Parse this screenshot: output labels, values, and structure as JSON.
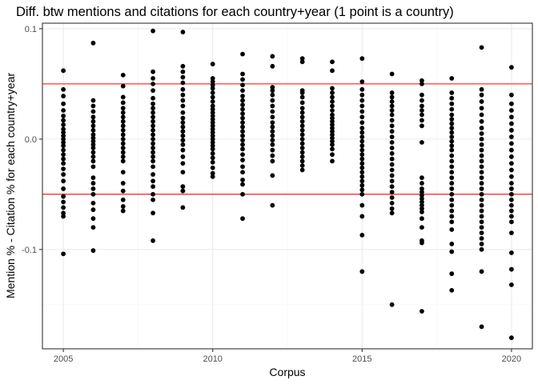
{
  "chart_data": {
    "type": "scatter",
    "title": "Diff. btw mentions and citations for each country+year (1 point is a country)",
    "xlabel": "Corpus",
    "ylabel": "Mention % - Citation % for each country+year",
    "xlim": [
      2004.3,
      2020.7
    ],
    "ylim": [
      -0.19,
      0.105
    ],
    "x_ticks": [
      2005,
      2010,
      2015,
      2020
    ],
    "x_tick_labels": [
      "2005",
      "2010",
      "2015",
      "2020"
    ],
    "y_ticks": [
      -0.1,
      0.0,
      0.1
    ],
    "y_tick_labels": [
      "-0.1",
      "0.0",
      "0.1"
    ],
    "grid": true,
    "legend": "none",
    "point_color": "#000000",
    "reference_lines": [
      {
        "y": 0.05,
        "color": "#ff0000"
      },
      {
        "y": -0.05,
        "color": "#ff0000"
      }
    ],
    "series": [
      {
        "x": 2005,
        "y": [
          0.062,
          0.045,
          0.039,
          0.032,
          0.026,
          0.021,
          0.017,
          0.013,
          0.009,
          0.006,
          0.003,
          0.0,
          -0.003,
          -0.006,
          -0.01,
          -0.014,
          -0.018,
          -0.022,
          -0.027,
          -0.032,
          -0.038,
          -0.045,
          -0.052,
          -0.057,
          -0.062,
          -0.067,
          -0.07,
          -0.104
        ]
      },
      {
        "x": 2006,
        "y": [
          0.087,
          0.035,
          0.03,
          0.025,
          0.02,
          0.016,
          0.012,
          0.008,
          0.004,
          0.001,
          -0.002,
          -0.005,
          -0.008,
          -0.012,
          -0.016,
          -0.02,
          -0.025,
          -0.035,
          -0.04,
          -0.045,
          -0.05,
          -0.058,
          -0.064,
          -0.072,
          -0.08,
          -0.101
        ]
      },
      {
        "x": 2007,
        "y": [
          0.058,
          0.048,
          0.038,
          0.033,
          0.028,
          0.024,
          0.02,
          0.016,
          0.012,
          0.008,
          0.004,
          0.0,
          -0.004,
          -0.008,
          -0.012,
          -0.016,
          -0.02,
          -0.03,
          -0.04,
          -0.047,
          -0.055,
          -0.061,
          -0.065
        ]
      },
      {
        "x": 2008,
        "y": [
          0.098,
          0.061,
          0.055,
          0.05,
          0.044,
          0.037,
          0.032,
          0.028,
          0.024,
          0.02,
          0.016,
          0.012,
          0.008,
          0.004,
          0.0,
          -0.004,
          -0.008,
          -0.012,
          -0.016,
          -0.02,
          -0.025,
          -0.032,
          -0.038,
          -0.043,
          -0.05,
          -0.055,
          -0.067,
          -0.092
        ]
      },
      {
        "x": 2009,
        "y": [
          0.097,
          0.066,
          0.061,
          0.056,
          0.051,
          0.045,
          0.04,
          0.035,
          0.03,
          0.024,
          0.019,
          0.015,
          0.011,
          0.007,
          0.003,
          -0.001,
          -0.005,
          -0.01,
          -0.016,
          -0.022,
          -0.03,
          -0.043,
          -0.047,
          -0.062
        ]
      },
      {
        "x": 2010,
        "y": [
          0.068,
          0.055,
          0.052,
          0.049,
          0.046,
          0.042,
          0.038,
          0.034,
          0.03,
          0.027,
          0.024,
          0.021,
          0.018,
          0.015,
          0.012,
          0.009,
          0.006,
          0.003,
          0.0,
          -0.003,
          -0.006,
          -0.009,
          -0.013,
          -0.017,
          -0.021,
          -0.026,
          -0.031,
          -0.034
        ]
      },
      {
        "x": 2011,
        "y": [
          0.077,
          0.059,
          0.054,
          0.049,
          0.044,
          0.039,
          0.035,
          0.031,
          0.027,
          0.023,
          0.019,
          0.015,
          0.011,
          0.007,
          0.003,
          -0.001,
          -0.005,
          -0.009,
          -0.014,
          -0.019,
          -0.025,
          -0.03,
          -0.037,
          -0.041,
          -0.05,
          -0.072
        ]
      },
      {
        "x": 2012,
        "y": [
          0.075,
          0.066,
          0.047,
          0.044,
          0.04,
          0.035,
          0.03,
          0.025,
          0.02,
          0.015,
          0.011,
          0.007,
          0.003,
          -0.001,
          -0.005,
          -0.01,
          -0.015,
          -0.02,
          -0.033,
          -0.06
        ]
      },
      {
        "x": 2013,
        "y": [
          0.073,
          0.07,
          0.044,
          0.042,
          0.038,
          0.033,
          0.028,
          0.024,
          0.02,
          0.016,
          0.012,
          0.008,
          0.004,
          0.0,
          -0.004,
          -0.008,
          -0.012,
          -0.016,
          -0.02,
          -0.024,
          -0.028
        ]
      },
      {
        "x": 2014,
        "y": [
          0.07,
          0.062,
          0.046,
          0.042,
          0.038,
          0.034,
          0.03,
          0.026,
          0.022,
          0.019,
          0.016,
          0.013,
          0.01,
          0.007,
          0.004,
          0.001,
          -0.002,
          -0.005,
          -0.009,
          -0.014,
          -0.02
        ]
      },
      {
        "x": 2015,
        "y": [
          0.073,
          0.052,
          0.045,
          0.04,
          0.035,
          0.03,
          0.025,
          0.02,
          0.015,
          0.01,
          0.006,
          0.002,
          -0.002,
          -0.006,
          -0.01,
          -0.014,
          -0.018,
          -0.022,
          -0.026,
          -0.03,
          -0.034,
          -0.038,
          -0.042,
          -0.046,
          -0.05,
          -0.06,
          -0.07,
          -0.087,
          -0.12
        ]
      },
      {
        "x": 2016,
        "y": [
          0.059,
          0.042,
          0.038,
          0.034,
          0.03,
          0.026,
          0.022,
          0.017,
          0.012,
          0.007,
          0.002,
          -0.003,
          -0.008,
          -0.013,
          -0.018,
          -0.023,
          -0.028,
          -0.033,
          -0.038,
          -0.043,
          -0.048,
          -0.053,
          -0.058,
          -0.063,
          -0.067,
          -0.15
        ]
      },
      {
        "x": 2017,
        "y": [
          0.053,
          0.05,
          0.04,
          0.035,
          0.03,
          0.026,
          0.022,
          0.017,
          0.012,
          -0.003,
          -0.035,
          -0.04,
          -0.045,
          -0.048,
          -0.051,
          -0.054,
          -0.057,
          -0.06,
          -0.063,
          -0.066,
          -0.072,
          -0.08,
          -0.092,
          -0.094,
          -0.156
        ]
      },
      {
        "x": 2018,
        "y": [
          0.055,
          0.042,
          0.037,
          0.032,
          0.027,
          0.022,
          0.018,
          0.014,
          0.01,
          0.006,
          0.002,
          -0.002,
          -0.006,
          -0.01,
          -0.015,
          -0.02,
          -0.025,
          -0.03,
          -0.035,
          -0.04,
          -0.045,
          -0.05,
          -0.055,
          -0.06,
          -0.065,
          -0.07,
          -0.075,
          -0.082,
          -0.095,
          -0.102,
          -0.122,
          -0.137
        ]
      },
      {
        "x": 2019,
        "y": [
          0.083,
          0.045,
          0.04,
          0.034,
          0.028,
          0.022,
          0.016,
          0.01,
          0.005,
          0.0,
          -0.005,
          -0.01,
          -0.015,
          -0.02,
          -0.025,
          -0.03,
          -0.035,
          -0.04,
          -0.045,
          -0.05,
          -0.055,
          -0.06,
          -0.065,
          -0.07,
          -0.075,
          -0.08,
          -0.085,
          -0.09,
          -0.095,
          -0.1,
          -0.12,
          -0.17
        ]
      },
      {
        "x": 2020,
        "y": [
          0.065,
          0.04,
          0.032,
          0.026,
          0.02,
          0.014,
          0.008,
          0.002,
          -0.004,
          -0.01,
          -0.016,
          -0.022,
          -0.028,
          -0.034,
          -0.04,
          -0.045,
          -0.05,
          -0.055,
          -0.06,
          -0.065,
          -0.07,
          -0.075,
          -0.085,
          -0.103,
          -0.118,
          -0.132,
          -0.18
        ]
      }
    ]
  }
}
